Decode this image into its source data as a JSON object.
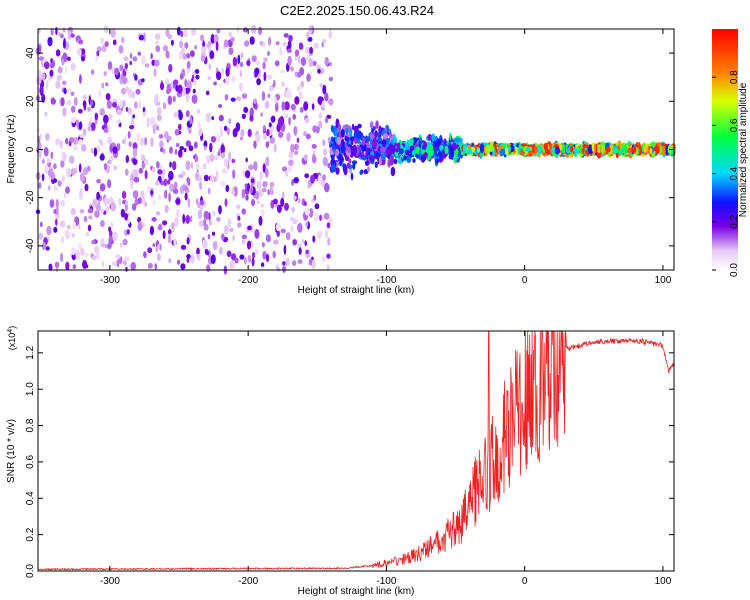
{
  "title": "C2E2.2025.150.06.43.R24",
  "chart_data": [
    {
      "type": "heatmap",
      "xlabel": "Height of straight line (km)",
      "ylabel": "Frequency (Hz)",
      "xlim": [
        -352,
        108
      ],
      "ylim": [
        -50,
        50
      ],
      "x_ticks": [
        -300,
        -200,
        -100,
        0,
        100
      ],
      "y_ticks": [
        -40,
        -20,
        0,
        20,
        40
      ],
      "colorbar": {
        "label": "Normalized spectral amplitude",
        "range": [
          0,
          1
        ],
        "ticks": [
          "0.0",
          "0.2",
          "0.4",
          "0.6",
          "0.8"
        ],
        "stops": [
          {
            "v": 0.0,
            "color": "#ffffff"
          },
          {
            "v": 0.08,
            "color": "#e6c8f5"
          },
          {
            "v": 0.18,
            "color": "#7a00e6"
          },
          {
            "v": 0.28,
            "color": "#1010ff"
          },
          {
            "v": 0.4,
            "color": "#00d8ff"
          },
          {
            "v": 0.55,
            "color": "#00ff40"
          },
          {
            "v": 0.7,
            "color": "#d8ff00"
          },
          {
            "v": 0.82,
            "color": "#ff8000"
          },
          {
            "v": 1.0,
            "color": "#ff0000"
          }
        ]
      },
      "regions": [
        {
          "x_range": [
            -352,
            -140
          ],
          "freq_spread": 50,
          "amplitude": 0.18,
          "density": 0.55
        },
        {
          "x_range": [
            -140,
            -95
          ],
          "freq_spread": 12,
          "amplitude": 0.3,
          "density": 0.8
        },
        {
          "x_range": [
            -95,
            -45
          ],
          "freq_spread": 6,
          "amplitude": 0.45,
          "density": 0.9
        },
        {
          "x_range": [
            -45,
            108
          ],
          "freq_spread": 2,
          "amplitude": 0.75,
          "density": 1.0
        }
      ]
    },
    {
      "type": "line",
      "xlabel": "Height of straight line (km)",
      "ylabel": "SNR (10 * v/v)",
      "y_multiplier": "(x10",
      "y_multiplier_exp": "4",
      "xlim": [
        -352,
        108
      ],
      "ylim": [
        0,
        1.32
      ],
      "x_ticks": [
        -300,
        -200,
        -100,
        0,
        100
      ],
      "y_ticks": [
        "0.0",
        "0.2",
        "0.4",
        "0.6",
        "0.8",
        "1.0",
        "1.2"
      ],
      "series_color": "#ee2020",
      "profile": [
        {
          "x": -352,
          "y": 0.01
        },
        {
          "x": -130,
          "y": 0.015
        },
        {
          "x": -110,
          "y": 0.03
        },
        {
          "x": -90,
          "y": 0.06
        },
        {
          "x": -75,
          "y": 0.1
        },
        {
          "x": -60,
          "y": 0.17
        },
        {
          "x": -45,
          "y": 0.28
        },
        {
          "x": -35,
          "y": 0.45
        },
        {
          "x": -20,
          "y": 0.65
        },
        {
          "x": -10,
          "y": 0.8
        },
        {
          "x": 0,
          "y": 0.92
        },
        {
          "x": 15,
          "y": 1.1
        },
        {
          "x": 30,
          "y": 1.22
        },
        {
          "x": 50,
          "y": 1.26
        },
        {
          "x": 80,
          "y": 1.27
        },
        {
          "x": 100,
          "y": 1.24
        },
        {
          "x": 104,
          "y": 1.1
        },
        {
          "x": 108,
          "y": 1.14
        }
      ],
      "spike": {
        "x": -26,
        "y": 1.32
      }
    }
  ]
}
